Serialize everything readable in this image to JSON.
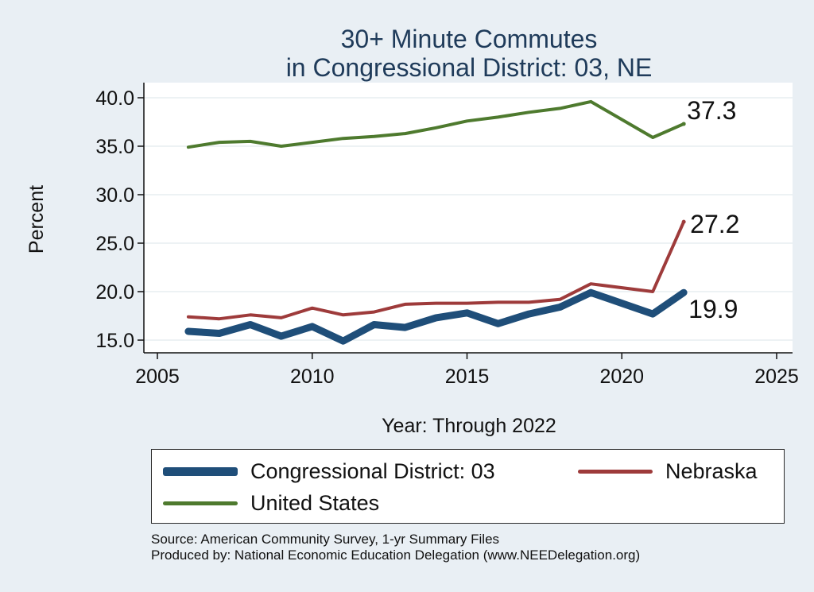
{
  "chart_data": {
    "type": "line",
    "title": [
      "30+ Minute Commutes",
      "in Congressional District:  03, NE"
    ],
    "xlabel": "Year: Through 2022",
    "ylabel": "Percent",
    "xlim": [
      2005,
      2025
    ],
    "ylim": [
      14.0,
      41.0
    ],
    "x_ticks": [
      2005,
      2010,
      2015,
      2020,
      2025
    ],
    "x_tick_labels": [
      "2005",
      "2010",
      "2015",
      "2020",
      "2025"
    ],
    "y_ticks": [
      15,
      20,
      25,
      30,
      35,
      40
    ],
    "y_tick_labels": [
      "15.0",
      "20.0",
      "25.0",
      "30.0",
      "35.0",
      "40.0"
    ],
    "grid": true,
    "legend_position": "bottom",
    "series": [
      {
        "name": "Congressional District:  03",
        "color": "#1f4e79",
        "x": [
          2006,
          2007,
          2008,
          2009,
          2010,
          2011,
          2012,
          2013,
          2014,
          2015,
          2016,
          2017,
          2018,
          2019,
          2021,
          2022
        ],
        "values": [
          15.9,
          15.7,
          16.6,
          15.4,
          16.4,
          14.9,
          16.6,
          16.3,
          17.3,
          17.8,
          16.7,
          17.7,
          18.4,
          19.9,
          17.7,
          19.9
        ],
        "end_label": "19.9"
      },
      {
        "name": "Nebraska",
        "color": "#9e3b3b",
        "x": [
          2006,
          2007,
          2008,
          2009,
          2010,
          2011,
          2012,
          2013,
          2014,
          2015,
          2016,
          2017,
          2018,
          2019,
          2021,
          2022
        ],
        "values": [
          17.4,
          17.2,
          17.6,
          17.3,
          18.3,
          17.6,
          17.9,
          18.7,
          18.8,
          18.8,
          18.9,
          18.9,
          19.2,
          20.8,
          20.0,
          27.2
        ],
        "end_label": "27.2"
      },
      {
        "name": "United States",
        "color": "#4e7a2e",
        "x": [
          2006,
          2007,
          2008,
          2009,
          2010,
          2011,
          2012,
          2013,
          2014,
          2015,
          2016,
          2017,
          2018,
          2019,
          2021,
          2022
        ],
        "values": [
          34.9,
          35.4,
          35.5,
          35.0,
          35.4,
          35.8,
          36.0,
          36.3,
          36.9,
          37.6,
          38.0,
          38.5,
          38.9,
          39.6,
          35.9,
          37.3
        ],
        "end_label": "37.3"
      }
    ]
  },
  "legend": {
    "items": [
      {
        "label": "Congressional District:  03"
      },
      {
        "label": "Nebraska"
      },
      {
        "label": "United States"
      }
    ]
  },
  "notes": {
    "source": "Source: American Community Survey, 1-yr Summary Files",
    "produced_by": "Produced by: National Economic Education Delegation (www.NEEDelegation.org)"
  }
}
